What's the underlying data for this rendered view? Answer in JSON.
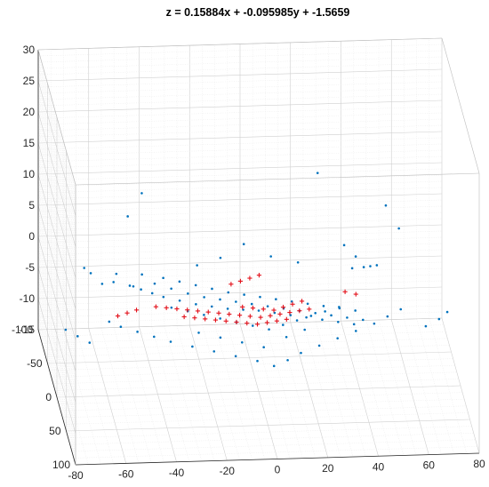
{
  "chart_data": {
    "type": "scatter",
    "title": "z =  0.15884x + -0.095985y + -1.5659",
    "xlabel": "",
    "ylabel": "",
    "zlabel": "",
    "x_ticks": [
      "-80",
      "-60",
      "-40",
      "-20",
      "0",
      "20",
      "40",
      "60",
      "80"
    ],
    "y_ticks": [
      "-100",
      "-50",
      "0",
      "50",
      "100"
    ],
    "z_ticks": [
      "-15",
      "-10",
      "-5",
      "0",
      "5",
      "10",
      "15",
      "20",
      "25",
      "30"
    ],
    "xlim": [
      -80,
      80
    ],
    "ylim": [
      -100,
      100
    ],
    "zlim": [
      -15,
      30
    ],
    "grid": true,
    "legend": "none",
    "colors": {
      "all_points": "#0072BD",
      "inlier_points": "#E3101A",
      "axes": "#262626",
      "grid": "#D9D9D9"
    },
    "series": [
      {
        "marker": "dot",
        "color": "#0072BD",
        "points": [
          [
            -64,
            -70,
            -2
          ],
          [
            -62,
            -62,
            -2
          ],
          [
            -58,
            -55,
            -3
          ],
          [
            -54,
            -48,
            -2
          ],
          [
            -52,
            -60,
            -2
          ],
          [
            -48,
            -42,
            -2
          ],
          [
            -46,
            -50,
            -3
          ],
          [
            -44,
            -36,
            -2
          ],
          [
            -42,
            -58,
            -2
          ],
          [
            -40,
            -30,
            -2
          ],
          [
            -38,
            -44,
            -2
          ],
          [
            -36,
            -24,
            -2
          ],
          [
            -34,
            -52,
            -2
          ],
          [
            -32,
            -36,
            -2
          ],
          [
            -30,
            -18,
            -2
          ],
          [
            -28,
            -46,
            -2
          ],
          [
            -26,
            -28,
            -2
          ],
          [
            -24,
            -12,
            -2
          ],
          [
            -22,
            -40,
            -2
          ],
          [
            -20,
            -22,
            -2
          ],
          [
            -18,
            -8,
            -2
          ],
          [
            -16,
            -34,
            -2
          ],
          [
            -14,
            -18,
            -2
          ],
          [
            -12,
            -4,
            -2
          ],
          [
            -10,
            -28,
            -2
          ],
          [
            -8,
            -14,
            -2
          ],
          [
            -6,
            -2,
            -2
          ],
          [
            -4,
            -24,
            -2
          ],
          [
            -2,
            -10,
            -2
          ],
          [
            0,
            0,
            -2
          ],
          [
            2,
            -20,
            -2
          ],
          [
            4,
            -6,
            -2
          ],
          [
            6,
            4,
            -2
          ],
          [
            8,
            -16,
            -2
          ],
          [
            10,
            -2,
            -2
          ],
          [
            12,
            8,
            -2
          ],
          [
            14,
            -12,
            -2
          ],
          [
            16,
            2,
            -2
          ],
          [
            18,
            12,
            -2
          ],
          [
            20,
            -8,
            -2
          ],
          [
            22,
            6,
            -2
          ],
          [
            24,
            16,
            -2
          ],
          [
            26,
            -4,
            -2
          ],
          [
            28,
            10,
            -2
          ],
          [
            30,
            20,
            -2
          ],
          [
            32,
            0,
            -2
          ],
          [
            34,
            14,
            -2
          ],
          [
            36,
            24,
            -2
          ],
          [
            38,
            4,
            -2
          ],
          [
            40,
            18,
            -2
          ],
          [
            -60,
            10,
            -2
          ],
          [
            -56,
            18,
            -2
          ],
          [
            -50,
            26,
            -2
          ],
          [
            -44,
            34,
            -2
          ],
          [
            -38,
            42,
            -2
          ],
          [
            -30,
            50,
            -2
          ],
          [
            -22,
            58,
            -2
          ],
          [
            -14,
            66,
            -2
          ],
          [
            -6,
            74,
            -2
          ],
          [
            0,
            82,
            -2
          ],
          [
            6,
            74,
            -2
          ],
          [
            12,
            64,
            -2
          ],
          [
            20,
            54,
            -2
          ],
          [
            28,
            44,
            -2
          ],
          [
            36,
            34,
            -2
          ],
          [
            44,
            24,
            -2
          ],
          [
            50,
            14,
            -2
          ],
          [
            56,
            4,
            -2
          ],
          [
            -20,
            -60,
            -1
          ],
          [
            -10,
            -70,
            -1
          ],
          [
            0,
            -80,
            0
          ],
          [
            10,
            -70,
            -1
          ],
          [
            20,
            -60,
            -1
          ],
          [
            40,
            -40,
            0
          ],
          [
            44,
            -32,
            1
          ],
          [
            46,
            -24,
            2
          ],
          [
            48,
            -16,
            3
          ],
          [
            42,
            -48,
            1
          ],
          [
            38,
            -56,
            2
          ],
          [
            -46,
            -80,
            5
          ],
          [
            -40,
            -86,
            8
          ],
          [
            30,
            -90,
            10
          ],
          [
            56,
            -76,
            6
          ],
          [
            60,
            -60,
            4
          ],
          [
            -70,
            40,
            -2
          ],
          [
            -74,
            30,
            -2
          ],
          [
            -78,
            20,
            -2
          ],
          [
            64,
            30,
            -2
          ],
          [
            70,
            20,
            -2
          ],
          [
            74,
            10,
            -2
          ],
          [
            -26,
            30,
            -2
          ],
          [
            -18,
            38,
            -2
          ],
          [
            -10,
            46,
            -2
          ],
          [
            -2,
            54,
            -2
          ],
          [
            8,
            40,
            -2
          ],
          [
            16,
            30,
            -2
          ],
          [
            -34,
            -8,
            -2
          ],
          [
            -28,
            -2,
            -2
          ],
          [
            -22,
            4,
            -2
          ],
          [
            -16,
            10,
            -2
          ],
          [
            -10,
            16,
            -2
          ],
          [
            -4,
            22,
            -2
          ],
          [
            2,
            28,
            -2
          ],
          [
            8,
            22,
            -2
          ],
          [
            14,
            16,
            -2
          ],
          [
            20,
            10,
            -2
          ],
          [
            26,
            4,
            -2
          ],
          [
            32,
            -2,
            -2
          ]
        ]
      },
      {
        "marker": "plus",
        "color": "#E3101A",
        "points": [
          [
            -40,
            -10,
            -2
          ],
          [
            -36,
            -8,
            -2
          ],
          [
            -32,
            -6,
            -2
          ],
          [
            -28,
            -4,
            -2
          ],
          [
            -24,
            -2,
            -2
          ],
          [
            -20,
            0,
            -2
          ],
          [
            -16,
            2,
            -2
          ],
          [
            -12,
            4,
            -2
          ],
          [
            -8,
            6,
            -2
          ],
          [
            -4,
            8,
            -2
          ],
          [
            0,
            10,
            -2
          ],
          [
            4,
            8,
            -2
          ],
          [
            8,
            6,
            -2
          ],
          [
            12,
            4,
            -2
          ],
          [
            16,
            2,
            -2
          ],
          [
            20,
            0,
            -2
          ],
          [
            -30,
            6,
            -2
          ],
          [
            -26,
            8,
            -2
          ],
          [
            -22,
            10,
            -2
          ],
          [
            -18,
            12,
            -2
          ],
          [
            -14,
            14,
            -2
          ],
          [
            -10,
            16,
            -2
          ],
          [
            -6,
            18,
            -2
          ],
          [
            -2,
            20,
            -2
          ],
          [
            2,
            18,
            -2
          ],
          [
            6,
            16,
            -2
          ],
          [
            10,
            14,
            -2
          ],
          [
            -6,
            -6,
            -2
          ],
          [
            -2,
            -4,
            -2
          ],
          [
            2,
            -2,
            -2
          ],
          [
            6,
            0,
            -2
          ],
          [
            10,
            -4,
            -2
          ],
          [
            14,
            -8,
            -2
          ],
          [
            18,
            -12,
            -2
          ],
          [
            -52,
            -2,
            -2
          ],
          [
            -56,
            2,
            -2
          ],
          [
            -48,
            -6,
            -2
          ],
          [
            -8,
            -40,
            -2
          ],
          [
            -4,
            -44,
            -2
          ],
          [
            0,
            -48,
            -2
          ],
          [
            4,
            -52,
            -2
          ],
          [
            36,
            -24,
            -2
          ],
          [
            40,
            -20,
            -2
          ]
        ]
      }
    ]
  }
}
